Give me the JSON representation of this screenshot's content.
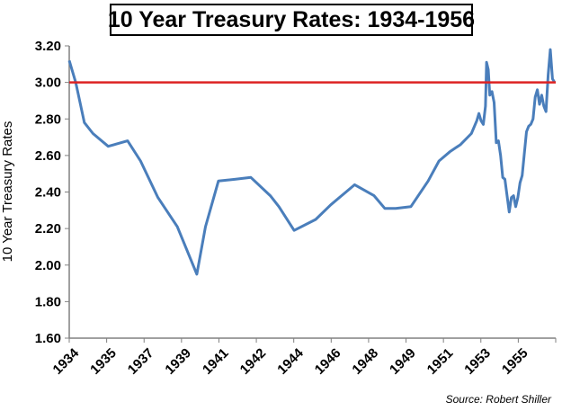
{
  "chart_data": {
    "type": "line",
    "title": "10 Year Treasury Rates: 1934-1956",
    "xlabel": "",
    "ylabel": "10 Year Treasury Rates",
    "ylim": [
      1.6,
      3.2
    ],
    "xlim": [
      1934.0,
      1956.5
    ],
    "y_ticks": [
      "1.60",
      "1.80",
      "2.00",
      "2.20",
      "2.40",
      "2.60",
      "2.80",
      "3.00",
      "3.20"
    ],
    "x_ticks": [
      "1934",
      "1935",
      "1937",
      "1939",
      "1941",
      "1942",
      "1944",
      "1946",
      "1948",
      "1949",
      "1951",
      "1953",
      "1955"
    ],
    "grid": false,
    "reference_line": {
      "y": 3.0,
      "color": "#dd2222"
    },
    "series_color": "#4a7ebb",
    "source": "Source: Robert Shiller",
    "series": [
      {
        "x": [
          1934.0,
          1934.3,
          1934.7,
          1935.1,
          1935.8,
          1936.7,
          1937.3,
          1938.1,
          1939.0,
          1939.9,
          1940.3,
          1940.9,
          1941.7,
          1942.4,
          1943.3,
          1943.7,
          1944.4,
          1945.4,
          1946.1,
          1947.2,
          1948.1,
          1948.6,
          1949.1,
          1949.8,
          1950.6,
          1951.1,
          1951.6,
          1952.1,
          1952.6,
          1952.85,
          1952.95,
          1953.05,
          1953.15,
          1953.25,
          1953.3,
          1953.38,
          1953.45,
          1953.55,
          1953.65,
          1953.75,
          1953.85,
          1953.95,
          1954.05,
          1954.15,
          1954.25,
          1954.35,
          1954.45,
          1954.55,
          1954.65,
          1954.75,
          1954.85,
          1954.95,
          1955.05,
          1955.15,
          1955.25,
          1955.35,
          1955.45,
          1955.55,
          1955.65,
          1955.75,
          1955.85,
          1955.95,
          1956.05,
          1956.15,
          1956.25,
          1956.35,
          1956.45
        ],
        "y": [
          3.12,
          3.0,
          2.78,
          2.72,
          2.65,
          2.68,
          2.57,
          2.37,
          2.21,
          1.95,
          2.21,
          2.46,
          2.47,
          2.48,
          2.38,
          2.32,
          2.19,
          2.25,
          2.33,
          2.44,
          2.38,
          2.31,
          2.31,
          2.32,
          2.46,
          2.57,
          2.62,
          2.66,
          2.72,
          2.79,
          2.83,
          2.79,
          2.77,
          2.87,
          3.11,
          3.07,
          2.93,
          2.95,
          2.89,
          2.67,
          2.68,
          2.6,
          2.48,
          2.47,
          2.38,
          2.29,
          2.37,
          2.38,
          2.32,
          2.37,
          2.45,
          2.49,
          2.61,
          2.73,
          2.76,
          2.77,
          2.8,
          2.92,
          2.96,
          2.88,
          2.93,
          2.87,
          2.84,
          3.04,
          3.18,
          3.02,
          3.0
        ]
      }
    ]
  }
}
